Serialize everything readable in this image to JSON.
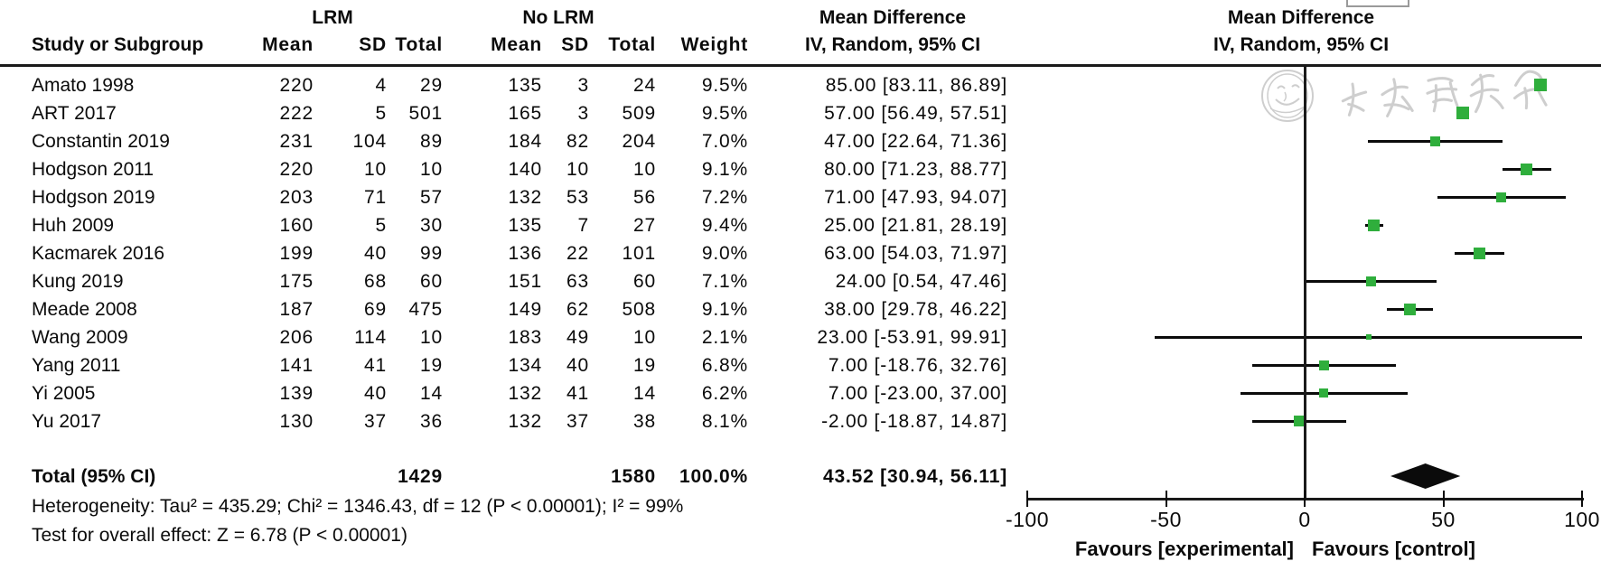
{
  "header": {
    "group1_label": "LRM",
    "group2_label": "No LRM",
    "col_study": "Study or Subgroup",
    "col_mean1": "Mean",
    "col_sd1": "SD",
    "col_total1": "Total",
    "col_mean2": "Mean",
    "col_sd2": "SD",
    "col_total2": "Total",
    "col_weight": "Weight",
    "effect_title_left": "Mean Difference",
    "effect_subtitle_left": "IV, Random, 95% CI",
    "effect_title_right": "Mean Difference",
    "effect_subtitle_right": "IV, Random, 95% CI"
  },
  "chart_data": {
    "type": "forest",
    "effect_measure": "Mean Difference",
    "model": "IV, Random, 95% CI",
    "studies": [
      {
        "study": "Amato 1998",
        "mean1": "220",
        "sd1": "4",
        "total1": "29",
        "mean2": "135",
        "sd2": "3",
        "total2": "24",
        "weight": "9.5%",
        "ci_text": "85.00 [83.11, 86.89]",
        "est": 85.0,
        "lo": 83.11,
        "hi": 86.89,
        "weight_pct": 9.5
      },
      {
        "study": "ART 2017",
        "mean1": "222",
        "sd1": "5",
        "total1": "501",
        "mean2": "165",
        "sd2": "3",
        "total2": "509",
        "weight": "9.5%",
        "ci_text": "57.00 [56.49, 57.51]",
        "est": 57.0,
        "lo": 56.49,
        "hi": 57.51,
        "weight_pct": 9.5
      },
      {
        "study": "Constantin 2019",
        "mean1": "231",
        "sd1": "104",
        "total1": "89",
        "mean2": "184",
        "sd2": "82",
        "total2": "204",
        "weight": "7.0%",
        "ci_text": "47.00 [22.64, 71.36]",
        "est": 47.0,
        "lo": 22.64,
        "hi": 71.36,
        "weight_pct": 7.0
      },
      {
        "study": "Hodgson 2011",
        "mean1": "220",
        "sd1": "10",
        "total1": "10",
        "mean2": "140",
        "sd2": "10",
        "total2": "10",
        "weight": "9.1%",
        "ci_text": "80.00 [71.23, 88.77]",
        "est": 80.0,
        "lo": 71.23,
        "hi": 88.77,
        "weight_pct": 9.1
      },
      {
        "study": "Hodgson 2019",
        "mean1": "203",
        "sd1": "71",
        "total1": "57",
        "mean2": "132",
        "sd2": "53",
        "total2": "56",
        "weight": "7.2%",
        "ci_text": "71.00 [47.93, 94.07]",
        "est": 71.0,
        "lo": 47.93,
        "hi": 94.07,
        "weight_pct": 7.2
      },
      {
        "study": "Huh 2009",
        "mean1": "160",
        "sd1": "5",
        "total1": "30",
        "mean2": "135",
        "sd2": "7",
        "total2": "27",
        "weight": "9.4%",
        "ci_text": "25.00 [21.81, 28.19]",
        "est": 25.0,
        "lo": 21.81,
        "hi": 28.19,
        "weight_pct": 9.4
      },
      {
        "study": "Kacmarek 2016",
        "mean1": "199",
        "sd1": "40",
        "total1": "99",
        "mean2": "136",
        "sd2": "22",
        "total2": "101",
        "weight": "9.0%",
        "ci_text": "63.00 [54.03, 71.97]",
        "est": 63.0,
        "lo": 54.03,
        "hi": 71.97,
        "weight_pct": 9.0
      },
      {
        "study": "Kung 2019",
        "mean1": "175",
        "sd1": "68",
        "total1": "60",
        "mean2": "151",
        "sd2": "63",
        "total2": "60",
        "weight": "7.1%",
        "ci_text": "24.00 [0.54, 47.46]",
        "est": 24.0,
        "lo": 0.54,
        "hi": 47.46,
        "weight_pct": 7.1
      },
      {
        "study": "Meade 2008",
        "mean1": "187",
        "sd1": "69",
        "total1": "475",
        "mean2": "149",
        "sd2": "62",
        "total2": "508",
        "weight": "9.1%",
        "ci_text": "38.00 [29.78, 46.22]",
        "est": 38.0,
        "lo": 29.78,
        "hi": 46.22,
        "weight_pct": 9.1
      },
      {
        "study": "Wang 2009",
        "mean1": "206",
        "sd1": "114",
        "total1": "10",
        "mean2": "183",
        "sd2": "49",
        "total2": "10",
        "weight": "2.1%",
        "ci_text": "23.00 [-53.91, 99.91]",
        "est": 23.0,
        "lo": -53.91,
        "hi": 99.91,
        "weight_pct": 2.1
      },
      {
        "study": "Yang 2011",
        "mean1": "141",
        "sd1": "41",
        "total1": "19",
        "mean2": "134",
        "sd2": "40",
        "total2": "19",
        "weight": "6.8%",
        "ci_text": "7.00 [-18.76, 32.76]",
        "est": 7.0,
        "lo": -18.76,
        "hi": 32.76,
        "weight_pct": 6.8
      },
      {
        "study": "Yi 2005",
        "mean1": "139",
        "sd1": "40",
        "total1": "14",
        "mean2": "132",
        "sd2": "41",
        "total2": "14",
        "weight": "6.2%",
        "ci_text": "7.00 [-23.00, 37.00]",
        "est": 7.0,
        "lo": -23.0,
        "hi": 37.0,
        "weight_pct": 6.2
      },
      {
        "study": "Yu 2017",
        "mean1": "130",
        "sd1": "37",
        "total1": "36",
        "mean2": "132",
        "sd2": "37",
        "total2": "38",
        "weight": "8.1%",
        "ci_text": "-2.00 [-18.87, 14.87]",
        "est": -2.0,
        "lo": -18.87,
        "hi": 14.87,
        "weight_pct": 8.1
      }
    ],
    "total": {
      "label": "Total (95% CI)",
      "total1": "1429",
      "total2": "1580",
      "weight": "100.0%",
      "ci_text": "43.52 [30.94, 56.11]",
      "est": 43.52,
      "lo": 30.94,
      "hi": 56.11
    },
    "heterogeneity": "Heterogeneity: Tau² = 435.29; Chi² = 1346.43, df = 12 (P < 0.00001); I² = 99%",
    "overall_effect": "Test for overall effect: Z = 6.78 (P < 0.00001)",
    "axis": {
      "min": -100,
      "max": 100,
      "ticks": [
        "-100",
        "-50",
        "0",
        "50",
        "100"
      ],
      "tick_values": [
        -100,
        -50,
        0,
        50,
        100
      ],
      "favours_left": "Favours [experimental]",
      "favours_right": "Favours [control]"
    }
  },
  "watermark": {
    "text": "中华医学会"
  },
  "colors": {
    "marker_green": "#2fae3c",
    "line_black": "#0b0b0b",
    "watermark_gray": "#c6c6c6"
  }
}
